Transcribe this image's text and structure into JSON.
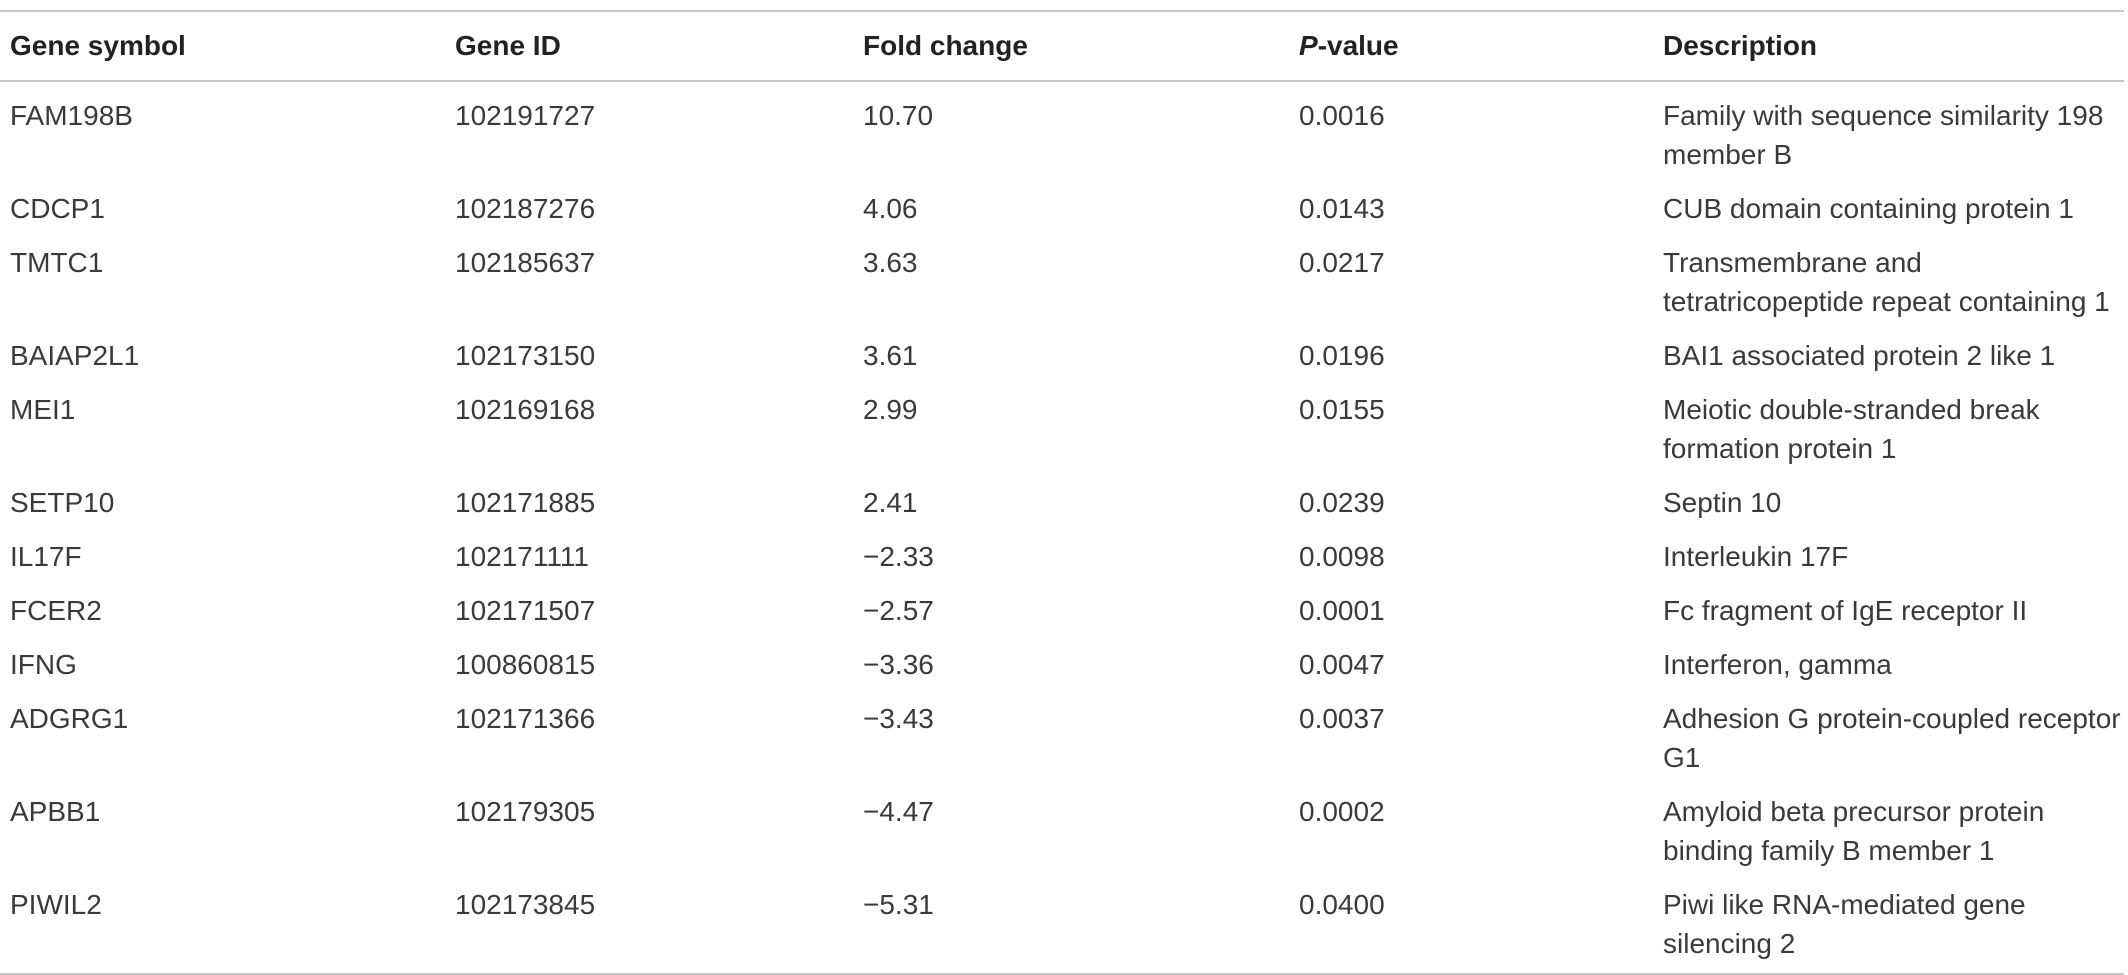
{
  "table": {
    "headers": {
      "gene_symbol": "Gene symbol",
      "gene_id": "Gene ID",
      "fold_change": "Fold change",
      "pvalue_p": "P",
      "pvalue_rest": "-value",
      "description": "Description"
    },
    "rows": [
      {
        "symbol": "FAM198B",
        "id": "102191727",
        "fold": "10.70",
        "p": "0.0016",
        "desc": "Family with sequence similarity 198 member B"
      },
      {
        "symbol": "CDCP1",
        "id": "102187276",
        "fold": "4.06",
        "p": "0.0143",
        "desc": "CUB domain containing protein 1"
      },
      {
        "symbol": "TMTC1",
        "id": "102185637",
        "fold": "3.63",
        "p": "0.0217",
        "desc": "Transmembrane and tetratricopeptide repeat containing 1"
      },
      {
        "symbol": "BAIAP2L1",
        "id": "102173150",
        "fold": "3.61",
        "p": "0.0196",
        "desc": "BAI1 associated protein 2 like 1"
      },
      {
        "symbol": "MEI1",
        "id": "102169168",
        "fold": "2.99",
        "p": "0.0155",
        "desc": "Meiotic double-stranded break formation protein 1"
      },
      {
        "symbol": "SETP10",
        "id": "102171885",
        "fold": "2.41",
        "p": "0.0239",
        "desc": "Septin 10"
      },
      {
        "symbol": "IL17F",
        "id": "102171111",
        "fold": "−2.33",
        "p": "0.0098",
        "desc": "Interleukin 17F"
      },
      {
        "symbol": "FCER2",
        "id": "102171507",
        "fold": "−2.57",
        "p": "0.0001",
        "desc": "Fc fragment of IgE receptor II"
      },
      {
        "symbol": "IFNG",
        "id": "100860815",
        "fold": "−3.36",
        "p": "0.0047",
        "desc": "Interferon, gamma"
      },
      {
        "symbol": "ADGRG1",
        "id": "102171366",
        "fold": "−3.43",
        "p": "0.0037",
        "desc": "Adhesion G protein-coupled receptor G1"
      },
      {
        "symbol": "APBB1",
        "id": "102179305",
        "fold": "−4.47",
        "p": "0.0002",
        "desc": "Amyloid beta precursor protein binding family B member 1"
      },
      {
        "symbol": "PIWIL2",
        "id": "102173845",
        "fold": "−5.31",
        "p": "0.0400",
        "desc": "Piwi like RNA-mediated gene silencing 2"
      }
    ]
  }
}
